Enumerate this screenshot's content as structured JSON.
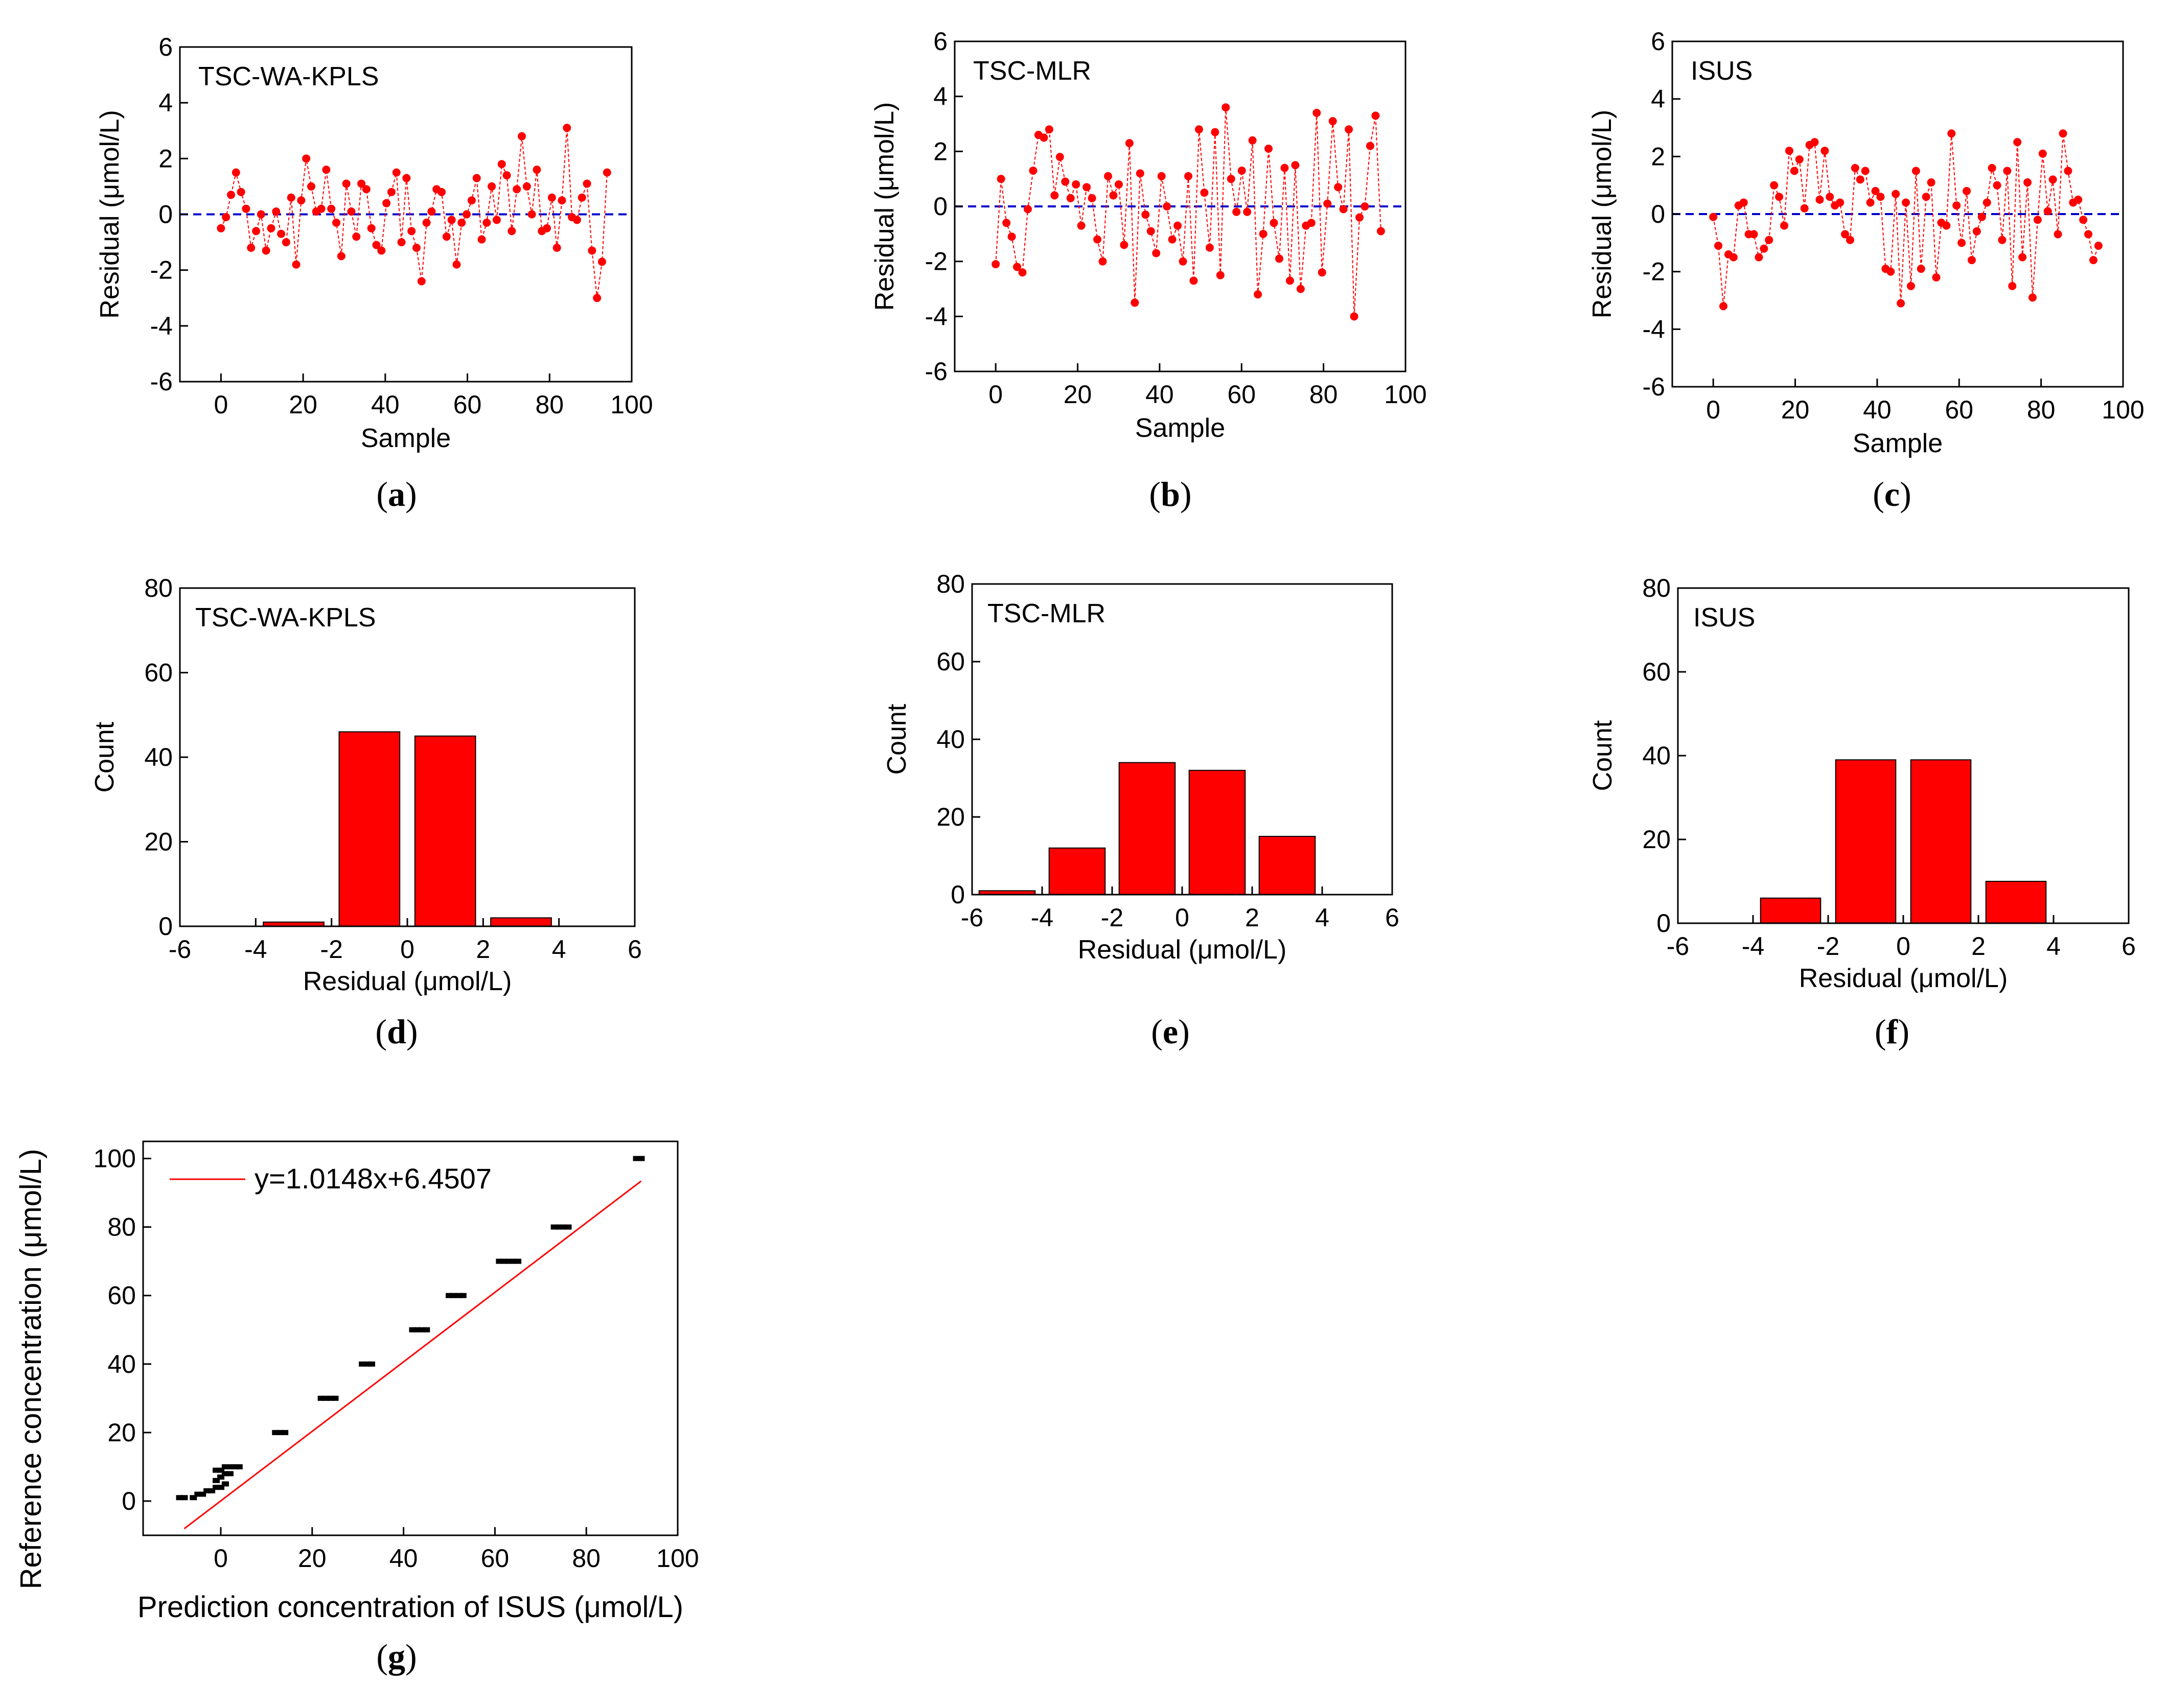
{
  "colors": {
    "marker": "#ff0000",
    "line": "#ff0000",
    "zero_line": "#0000cc",
    "bar": "#ff0000",
    "bar_edge": "#000000",
    "axis": "#000000",
    "fit_line": "#ff0000",
    "point": "#000000"
  },
  "chart_data": [
    {
      "id": "a",
      "type": "line",
      "panel_label": "a",
      "title": "TSC-WA-KPLS",
      "xlabel": "Sample",
      "ylabel": "Residual (μmol/L)",
      "xlim": [
        -10,
        100
      ],
      "ylim": [
        -6,
        6
      ],
      "xticks": [
        "0",
        "20",
        "40",
        "60",
        "80",
        "100"
      ],
      "yticks": [
        "-6",
        "-4",
        "-2",
        "0",
        "2",
        "4",
        "6"
      ],
      "reference_line": 0,
      "y": [
        -0.5,
        -0.1,
        0.7,
        1.5,
        0.8,
        0.2,
        -1.2,
        -0.6,
        0.0,
        -1.3,
        -0.5,
        0.1,
        -0.7,
        -1.0,
        0.6,
        -1.8,
        0.5,
        2.0,
        1.0,
        0.1,
        0.2,
        1.6,
        0.2,
        -0.3,
        -1.5,
        1.1,
        0.1,
        -0.8,
        1.1,
        0.9,
        -0.5,
        -1.1,
        -1.3,
        0.4,
        0.8,
        1.5,
        -1.0,
        1.3,
        -0.6,
        -1.2,
        -2.4,
        -0.3,
        0.1,
        0.9,
        0.8,
        -0.8,
        -0.2,
        -1.8,
        -0.3,
        0.0,
        0.5,
        1.3,
        -0.9,
        -0.3,
        1.0,
        -0.2,
        1.8,
        1.4,
        -0.6,
        0.9,
        2.8,
        1.0,
        0.0,
        1.6,
        -0.6,
        -0.5,
        0.6,
        -1.2,
        0.5,
        3.1,
        -0.1,
        -0.2,
        0.6,
        1.1,
        -1.3,
        -3.0,
        -1.7,
        1.5
      ]
    },
    {
      "id": "b",
      "type": "line",
      "panel_label": "b",
      "title": "TSC-MLR",
      "xlabel": "Sample",
      "ylabel": "Residual (μmol/L)",
      "xlim": [
        -10,
        100
      ],
      "ylim": [
        -6,
        6
      ],
      "xticks": [
        "0",
        "20",
        "40",
        "60",
        "80",
        "100"
      ],
      "yticks": [
        "-6",
        "-4",
        "-2",
        "0",
        "2",
        "4",
        "6"
      ],
      "reference_line": 0,
      "y": [
        -2.1,
        1.0,
        -0.6,
        -1.1,
        -2.2,
        -2.4,
        -0.1,
        1.3,
        2.6,
        2.5,
        2.8,
        0.4,
        1.8,
        0.9,
        0.3,
        0.8,
        -0.7,
        0.7,
        0.3,
        -1.2,
        -2.0,
        1.1,
        0.4,
        0.8,
        -1.4,
        2.3,
        -3.5,
        1.2,
        -0.3,
        -0.9,
        -1.7,
        1.1,
        0.0,
        -1.2,
        -0.7,
        -2.0,
        1.1,
        -2.7,
        2.8,
        0.5,
        -1.5,
        2.7,
        -2.5,
        3.6,
        1.0,
        -0.2,
        1.3,
        -0.2,
        2.4,
        -3.2,
        -1.0,
        2.1,
        -0.6,
        -1.9,
        1.4,
        -2.7,
        1.5,
        -3.0,
        -0.7,
        -0.6,
        3.4,
        -2.4,
        0.1,
        3.1,
        0.7,
        -0.1,
        2.8,
        -4.0,
        -0.4,
        0.0,
        2.2,
        3.3,
        -0.9
      ]
    },
    {
      "id": "c",
      "type": "line",
      "panel_label": "c",
      "title": "ISUS",
      "xlabel": "Sample",
      "ylabel": "Residual (μmol/L)",
      "xlim": [
        -10,
        100
      ],
      "ylim": [
        -6,
        6
      ],
      "xticks": [
        "0",
        "20",
        "40",
        "60",
        "80",
        "100"
      ],
      "yticks": [
        "-6",
        "-4",
        "-2",
        "0",
        "2",
        "4",
        "6"
      ],
      "reference_line": 0,
      "y": [
        -0.1,
        -1.1,
        -3.2,
        -1.4,
        -1.5,
        0.3,
        0.4,
        -0.7,
        -0.7,
        -1.5,
        -1.2,
        -0.9,
        1.0,
        0.6,
        -0.4,
        2.2,
        1.5,
        1.9,
        0.2,
        2.4,
        2.5,
        0.5,
        2.2,
        0.6,
        0.3,
        0.4,
        -0.7,
        -0.9,
        1.6,
        1.2,
        1.5,
        0.4,
        0.8,
        0.6,
        -1.9,
        -2.0,
        0.7,
        -3.1,
        0.4,
        -2.5,
        1.5,
        -1.9,
        0.6,
        1.1,
        -2.2,
        -0.3,
        -0.4,
        2.8,
        0.3,
        -1.0,
        0.8,
        -1.6,
        -0.6,
        -0.1,
        0.4,
        1.6,
        1.0,
        -0.9,
        1.5,
        -2.5,
        2.5,
        -1.5,
        1.1,
        -2.9,
        -0.2,
        2.1,
        0.1,
        1.2,
        -0.7,
        2.8,
        1.5,
        0.4,
        0.5,
        -0.2,
        -0.7,
        -1.6,
        -1.1
      ]
    },
    {
      "id": "d",
      "type": "bar",
      "panel_label": "d",
      "title": "TSC-WA-KPLS",
      "xlabel": "Residual (μmol/L)",
      "ylabel": "Count",
      "xlim": [
        -6,
        6
      ],
      "ylim": [
        0,
        80
      ],
      "xticks": [
        "-6",
        "-4",
        "-2",
        "0",
        "2",
        "4",
        "6"
      ],
      "yticks": [
        "0",
        "20",
        "40",
        "60",
        "80"
      ],
      "bins": [
        [
          -4,
          -2
        ],
        [
          -2,
          0
        ],
        [
          0,
          2
        ],
        [
          2,
          4
        ]
      ],
      "values": [
        1,
        46,
        45,
        2
      ]
    },
    {
      "id": "e",
      "type": "bar",
      "panel_label": "e",
      "title": "TSC-MLR",
      "xlabel": "Residual (μmol/L)",
      "ylabel": "Count",
      "xlim": [
        -6,
        6
      ],
      "ylim": [
        0,
        80
      ],
      "xticks": [
        "-6",
        "-4",
        "-2",
        "0",
        "2",
        "4",
        "6"
      ],
      "yticks": [
        "0",
        "20",
        "40",
        "60",
        "80"
      ],
      "bins": [
        [
          -6,
          -4
        ],
        [
          -4,
          -2
        ],
        [
          -2,
          0
        ],
        [
          0,
          2
        ],
        [
          2,
          4
        ]
      ],
      "values": [
        1,
        12,
        34,
        32,
        15
      ]
    },
    {
      "id": "f",
      "type": "bar",
      "panel_label": "f",
      "title": "ISUS",
      "xlabel": "Residual (μmol/L)",
      "ylabel": "Count",
      "xlim": [
        -6,
        6
      ],
      "ylim": [
        0,
        80
      ],
      "xticks": [
        "-6",
        "-4",
        "-2",
        "0",
        "2",
        "4",
        "6"
      ],
      "yticks": [
        "0",
        "20",
        "40",
        "60",
        "80"
      ],
      "bins": [
        [
          -4,
          -2
        ],
        [
          -2,
          0
        ],
        [
          0,
          2
        ],
        [
          2,
          4
        ]
      ],
      "values": [
        6,
        39,
        39,
        10
      ]
    },
    {
      "id": "g",
      "type": "scatter",
      "panel_label": "g",
      "xlabel": "Prediction concentration of ISUS (μmol/L)",
      "ylabel": "Reference concentration (μmol/L)",
      "xlim": [
        -17,
        100
      ],
      "ylim": [
        -10,
        105
      ],
      "xticks": [
        "0",
        "20",
        "40",
        "60",
        "80",
        "100"
      ],
      "yticks": [
        "0",
        "20",
        "40",
        "60",
        "80",
        "100"
      ],
      "legend": "y=1.0148x+6.4507",
      "fit": {
        "slope": 1.0148,
        "intercept": 6.4507
      },
      "points": [
        [
          -9,
          1
        ],
        [
          -8,
          1
        ],
        [
          -6,
          1
        ],
        [
          -5,
          2
        ],
        [
          -4,
          2
        ],
        [
          -3,
          3
        ],
        [
          -2,
          3
        ],
        [
          -1,
          4
        ],
        [
          0,
          4
        ],
        [
          1,
          5
        ],
        [
          -1,
          6
        ],
        [
          0,
          7
        ],
        [
          1,
          8
        ],
        [
          2,
          8
        ],
        [
          -1,
          9
        ],
        [
          0,
          9
        ],
        [
          1,
          10
        ],
        [
          2,
          10
        ],
        [
          3,
          10
        ],
        [
          4,
          10
        ],
        [
          12,
          20
        ],
        [
          13,
          20
        ],
        [
          14,
          20
        ],
        [
          22,
          30
        ],
        [
          23,
          30
        ],
        [
          24,
          30
        ],
        [
          25,
          30
        ],
        [
          31,
          40
        ],
        [
          32,
          40
        ],
        [
          33,
          40
        ],
        [
          42,
          50
        ],
        [
          43,
          50
        ],
        [
          44,
          50
        ],
        [
          45,
          50
        ],
        [
          50,
          60
        ],
        [
          51,
          60
        ],
        [
          52,
          60
        ],
        [
          53,
          60
        ],
        [
          61,
          70
        ],
        [
          62,
          70
        ],
        [
          63,
          70
        ],
        [
          64,
          70
        ],
        [
          65,
          70
        ],
        [
          73,
          80
        ],
        [
          74,
          80
        ],
        [
          75,
          80
        ],
        [
          76,
          80
        ],
        [
          91,
          100
        ],
        [
          92,
          100
        ]
      ]
    }
  ]
}
